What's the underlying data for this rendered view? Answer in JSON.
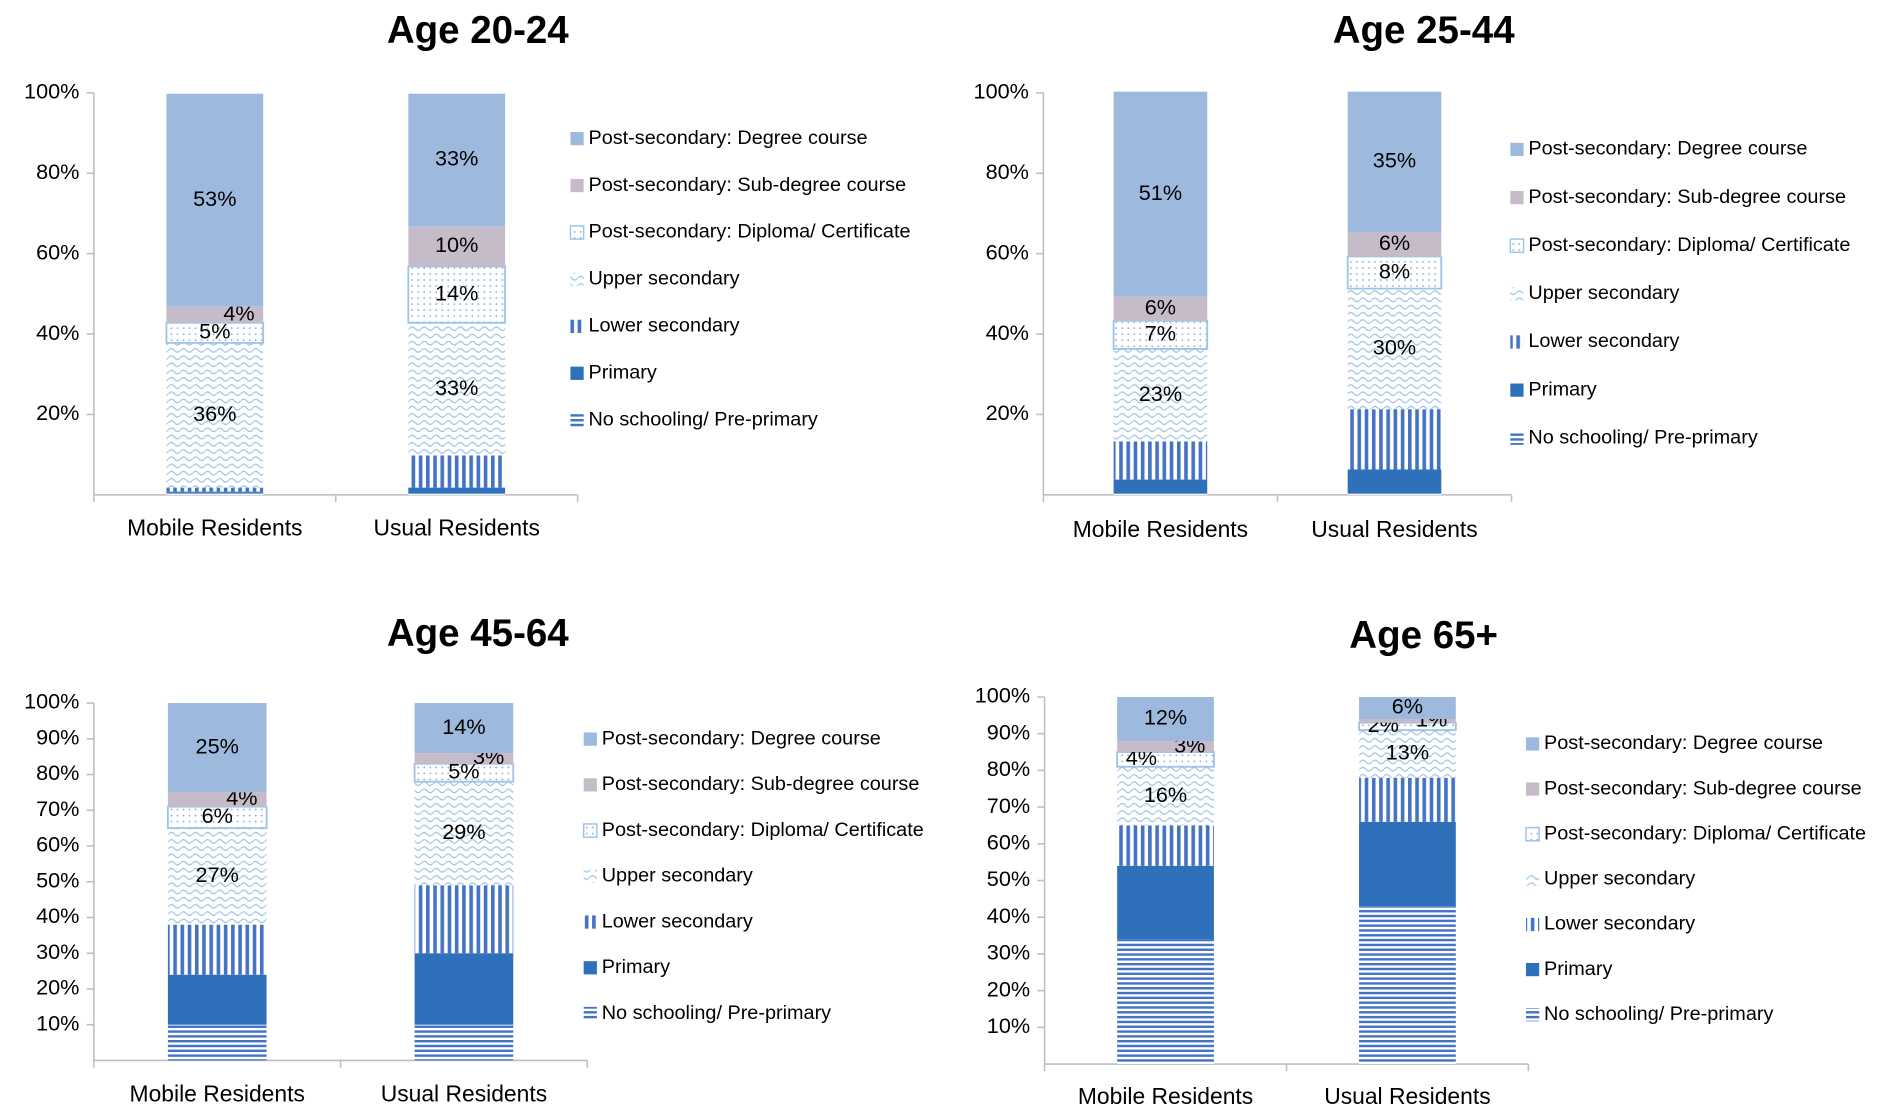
{
  "chart_data": [
    {
      "type": "bar",
      "stacked": true,
      "title": "Age 20-24",
      "categories": [
        "Mobile Residents",
        "Usual Residents"
      ],
      "ylim": [
        0,
        100
      ],
      "yticks": [
        {
          "value": 20,
          "label": "20%"
        },
        {
          "value": 40,
          "label": "40%"
        },
        {
          "value": 60,
          "label": "60%"
        },
        {
          "value": 80,
          "label": "80%"
        },
        {
          "value": 100,
          "label": "100%"
        }
      ],
      "series": [
        {
          "name": "No schooling/ Pre-primary",
          "color": "#4472c4",
          "pattern": "horizontal",
          "values": [
            0.5,
            0.3
          ]
        },
        {
          "name": "Primary",
          "color": "#2e70ba",
          "pattern": null,
          "values": [
            0.3,
            1.5
          ]
        },
        {
          "name": "Lower secondary",
          "color": "#4472c4",
          "pattern": "vertical",
          "values": [
            1,
            8
          ]
        },
        {
          "name": "Upper secondary",
          "color": "#9dc3e6",
          "pattern": "waves",
          "values": [
            36,
            33
          ],
          "value_labels": [
            "36%",
            "33%"
          ]
        },
        {
          "name": "Post-secondary: Diploma/ Certificate",
          "color": "#9dc3e6",
          "pattern": "dots",
          "values": [
            5,
            14
          ],
          "value_labels": [
            "5%",
            "14%"
          ]
        },
        {
          "name": "Post-secondary: Sub-degree course",
          "color": "#c6bcc9",
          "pattern": null,
          "values": [
            4,
            10
          ],
          "value_labels": [
            "4%",
            "10%"
          ]
        },
        {
          "name": "Post-secondary: Degree course",
          "color": "#9dbade",
          "pattern": null,
          "values": [
            53,
            33
          ],
          "value_labels": [
            "53%",
            "33%"
          ]
        }
      ]
    },
    {
      "type": "bar",
      "stacked": true,
      "title": "Age 25-44",
      "categories": [
        "Mobile Residents",
        "Usual Residents"
      ],
      "ylim": [
        0,
        100
      ],
      "yticks": [
        {
          "value": 20,
          "label": "20%"
        },
        {
          "value": 40,
          "label": "40%"
        },
        {
          "value": 60,
          "label": "60%"
        },
        {
          "value": 80,
          "label": "80%"
        },
        {
          "value": 100,
          "label": "100%"
        }
      ],
      "series": [
        {
          "name": "No schooling/ Pre-primary",
          "color": "#4472c4",
          "pattern": "horizontal",
          "values": [
            0.3,
            0.3
          ]
        },
        {
          "name": "Primary",
          "color": "#2e70ba",
          "pattern": null,
          "values": [
            3.5,
            6
          ]
        },
        {
          "name": "Lower secondary",
          "color": "#4472c4",
          "pattern": "vertical",
          "values": [
            9.5,
            15
          ]
        },
        {
          "name": "Upper secondary",
          "color": "#9dc3e6",
          "pattern": "waves",
          "values": [
            23,
            30
          ],
          "value_labels": [
            "23%",
            "30%"
          ]
        },
        {
          "name": "Post-secondary: Diploma/ Certificate",
          "color": "#9dc3e6",
          "pattern": "dots",
          "values": [
            7,
            8
          ],
          "value_labels": [
            "7%",
            "8%"
          ]
        },
        {
          "name": "Post-secondary: Sub-degree course",
          "color": "#c6bcc9",
          "pattern": null,
          "values": [
            6,
            6
          ],
          "value_labels": [
            "6%",
            "6%"
          ]
        },
        {
          "name": "Post-secondary: Degree course",
          "color": "#9dbade",
          "pattern": null,
          "values": [
            51,
            35
          ],
          "value_labels": [
            "51%",
            "35%"
          ]
        }
      ]
    },
    {
      "type": "bar",
      "stacked": true,
      "title": "Age 45-64",
      "categories": [
        "Mobile Residents",
        "Usual Residents"
      ],
      "ylim": [
        0,
        100
      ],
      "yticks": [
        {
          "value": 10,
          "label": "10%"
        },
        {
          "value": 20,
          "label": "20%"
        },
        {
          "value": 30,
          "label": "30%"
        },
        {
          "value": 40,
          "label": "40%"
        },
        {
          "value": 50,
          "label": "50%"
        },
        {
          "value": 60,
          "label": "60%"
        },
        {
          "value": 70,
          "label": "70%"
        },
        {
          "value": 80,
          "label": "80%"
        },
        {
          "value": 90,
          "label": "90%"
        },
        {
          "value": 100,
          "label": "100%"
        }
      ],
      "series": [
        {
          "name": "No schooling/ Pre-primary",
          "color": "#4472c4",
          "pattern": "horizontal",
          "values": [
            10,
            10
          ]
        },
        {
          "name": "Primary",
          "color": "#2e70ba",
          "pattern": null,
          "values": [
            14,
            20
          ]
        },
        {
          "name": "Lower secondary",
          "color": "#4472c4",
          "pattern": "vertical",
          "values": [
            14,
            19
          ]
        },
        {
          "name": "Upper secondary",
          "color": "#9dc3e6",
          "pattern": "waves",
          "values": [
            27,
            29
          ],
          "value_labels": [
            "27%",
            "29%"
          ]
        },
        {
          "name": "Post-secondary: Diploma/ Certificate",
          "color": "#9dc3e6",
          "pattern": "dots",
          "values": [
            6,
            5
          ],
          "value_labels": [
            "6%",
            "5%"
          ]
        },
        {
          "name": "Post-secondary: Sub-degree course",
          "color": "#c6bcc9",
          "pattern": null,
          "values": [
            4,
            3
          ],
          "value_labels": [
            "4%",
            "3%"
          ]
        },
        {
          "name": "Post-secondary: Degree course",
          "color": "#9dbade",
          "pattern": null,
          "values": [
            25,
            14
          ],
          "value_labels": [
            "25%",
            "14%"
          ]
        }
      ]
    },
    {
      "type": "bar",
      "stacked": true,
      "title": "Age 65+",
      "categories": [
        "Mobile Residents",
        "Usual Residents"
      ],
      "ylim": [
        0,
        100
      ],
      "yticks": [
        {
          "value": 10,
          "label": "10%"
        },
        {
          "value": 20,
          "label": "20%"
        },
        {
          "value": 30,
          "label": "30%"
        },
        {
          "value": 40,
          "label": "40%"
        },
        {
          "value": 50,
          "label": "50%"
        },
        {
          "value": 60,
          "label": "60%"
        },
        {
          "value": 70,
          "label": "70%"
        },
        {
          "value": 80,
          "label": "80%"
        },
        {
          "value": 90,
          "label": "90%"
        },
        {
          "value": 100,
          "label": "100%"
        }
      ],
      "series": [
        {
          "name": "No schooling/ Pre-primary",
          "color": "#4472c4",
          "pattern": "horizontal",
          "values": [
            34,
            43
          ]
        },
        {
          "name": "Primary",
          "color": "#2e70ba",
          "pattern": null,
          "values": [
            20,
            23
          ]
        },
        {
          "name": "Lower secondary",
          "color": "#4472c4",
          "pattern": "vertical",
          "values": [
            11,
            12
          ]
        },
        {
          "name": "Upper secondary",
          "color": "#9dc3e6",
          "pattern": "waves",
          "values": [
            16,
            13
          ],
          "value_labels": [
            "16%",
            "13%"
          ]
        },
        {
          "name": "Post-secondary: Diploma/ Certificate",
          "color": "#9dc3e6",
          "pattern": "dots",
          "values": [
            4,
            2
          ],
          "value_labels": [
            "4%",
            "2%"
          ]
        },
        {
          "name": "Post-secondary: Sub-degree course",
          "color": "#c6bcc9",
          "pattern": null,
          "values": [
            3,
            1
          ],
          "value_labels": [
            "3%",
            "1%"
          ]
        },
        {
          "name": "Post-secondary: Degree course",
          "color": "#9dbade",
          "pattern": null,
          "values": [
            12,
            6
          ],
          "value_labels": [
            "12%",
            "6%"
          ]
        }
      ]
    }
  ]
}
